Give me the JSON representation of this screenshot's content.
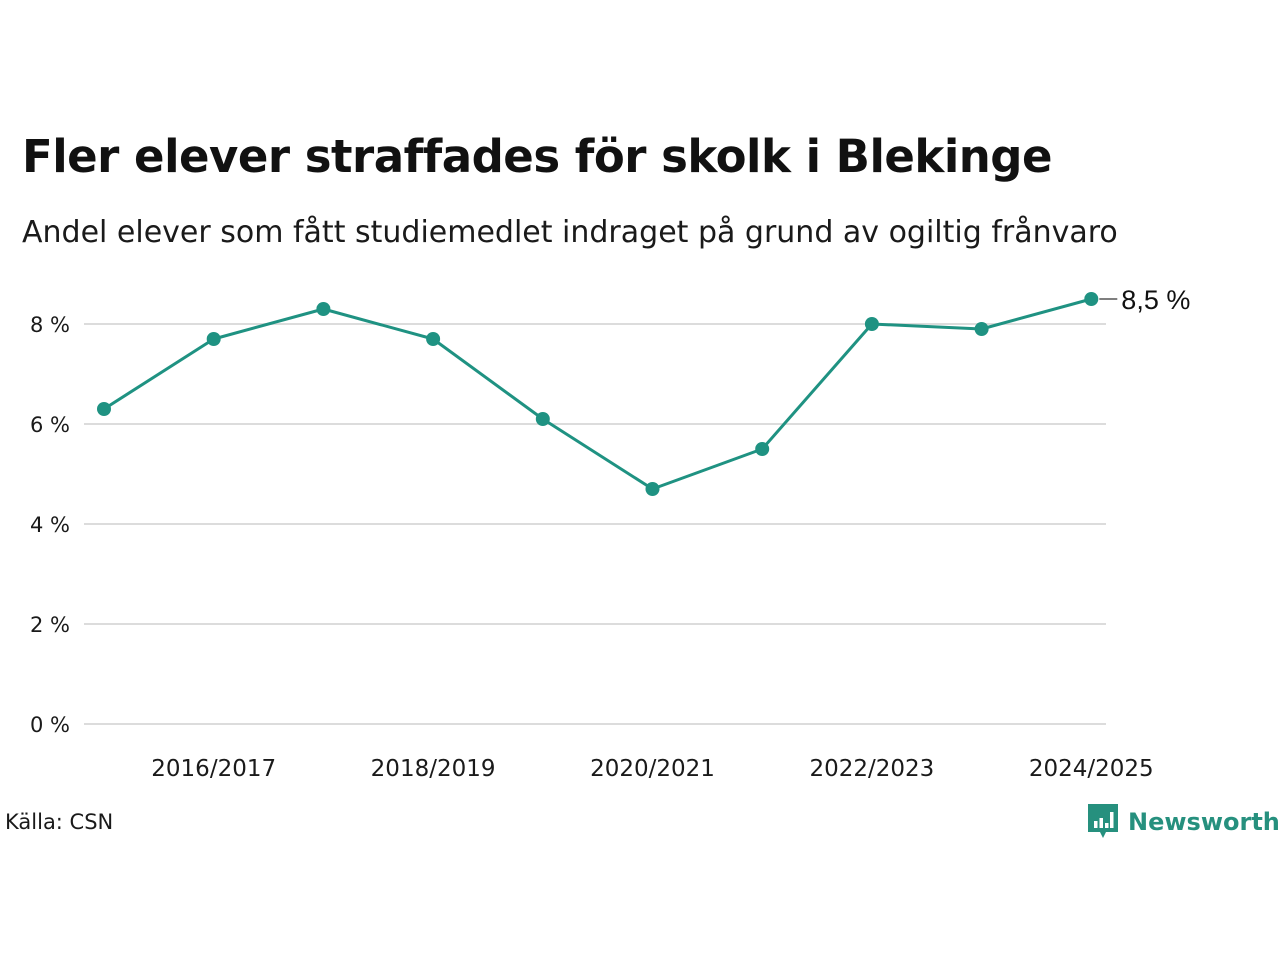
{
  "title": "Fler elever straffades för skolk i Blekinge",
  "subtitle": "Andel elever som fått studiemedlet indraget på grund av ogiltig frånvaro",
  "source": "Källa: CSN",
  "brand": {
    "name": "Newsworthy",
    "icon": "newsworthy-logo-icon",
    "color": "#26907e"
  },
  "chart_data": {
    "type": "line",
    "x": [
      "2015/2016",
      "2016/2017",
      "2017/2018",
      "2018/2019",
      "2019/2020",
      "2020/2021",
      "2021/2022",
      "2022/2023",
      "2023/2024",
      "2024/2025"
    ],
    "x_tick_labels": [
      "2016/2017",
      "2018/2019",
      "2020/2021",
      "2022/2023",
      "2024/2025"
    ],
    "series": [
      {
        "values": [
          6.3,
          7.7,
          8.3,
          7.7,
          6.1,
          4.7,
          5.5,
          8.0,
          7.9,
          8.5
        ],
        "color": "#1f9282"
      }
    ],
    "y_ticks": [
      0,
      2,
      4,
      6,
      8
    ],
    "y_tick_labels": [
      "0 %",
      "2 %",
      "4 %",
      "6 %",
      "8 %"
    ],
    "ylim": [
      0,
      8.8
    ],
    "end_label": "8,5 %",
    "grid": true,
    "legend": "none"
  }
}
